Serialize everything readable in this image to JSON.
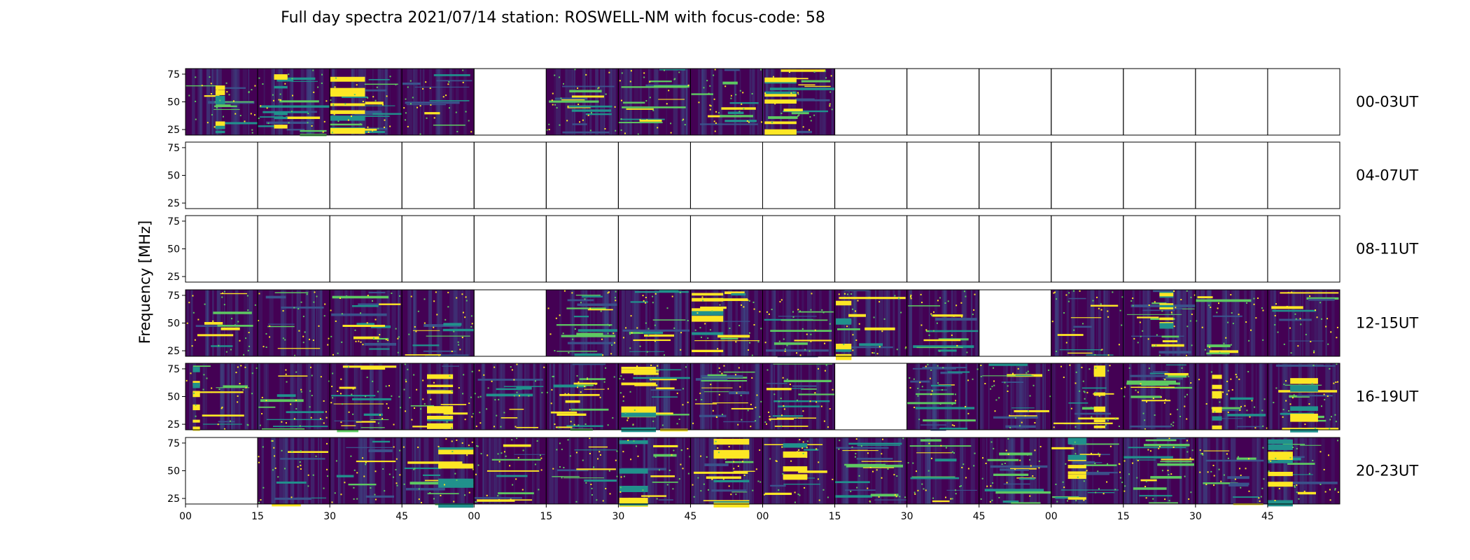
{
  "chart_data": {
    "type": "heatmap",
    "title": "Full day spectra 2021/07/14 station: ROSWELL-NM with focus-code: 58",
    "ylabel": "Frequency [MHz]",
    "xlabel": "",
    "ylim": [
      20,
      80
    ],
    "y_ticks": [
      "25",
      "50",
      "75"
    ],
    "y_tick_values": [
      25,
      50,
      75
    ],
    "x_tick_labels": [
      "00",
      "15",
      "30",
      "45",
      "00",
      "15",
      "30",
      "45",
      "00",
      "15",
      "30",
      "45",
      "00",
      "15",
      "30",
      "45"
    ],
    "colormap": [
      "#440154",
      "#3b528b",
      "#21918c",
      "#5ec962",
      "#fde725"
    ],
    "rows": [
      {
        "label": "00-03UT",
        "available": [
          1,
          1,
          1,
          1,
          0,
          1,
          1,
          1,
          1,
          0,
          0,
          0,
          0,
          0,
          0,
          0
        ]
      },
      {
        "label": "04-07UT",
        "available": [
          0,
          0,
          0,
          0,
          0,
          0,
          0,
          0,
          0,
          0,
          0,
          0,
          0,
          0,
          0,
          0
        ]
      },
      {
        "label": "08-11UT",
        "available": [
          0,
          0,
          0,
          0,
          0,
          0,
          0,
          0,
          0,
          0,
          0,
          0,
          0,
          0,
          0,
          0
        ]
      },
      {
        "label": "12-15UT",
        "available": [
          1,
          1,
          1,
          1,
          0,
          1,
          1,
          1,
          1,
          1,
          1,
          0,
          1,
          1,
          1,
          1
        ]
      },
      {
        "label": "16-19UT",
        "available": [
          1,
          1,
          1,
          1,
          1,
          1,
          1,
          1,
          1,
          0,
          1,
          1,
          1,
          1,
          1,
          1
        ]
      },
      {
        "label": "20-23UT",
        "available": [
          0,
          1,
          1,
          1,
          1,
          1,
          1,
          1,
          1,
          1,
          1,
          1,
          1,
          1,
          1,
          1
        ]
      }
    ],
    "grid": false
  }
}
